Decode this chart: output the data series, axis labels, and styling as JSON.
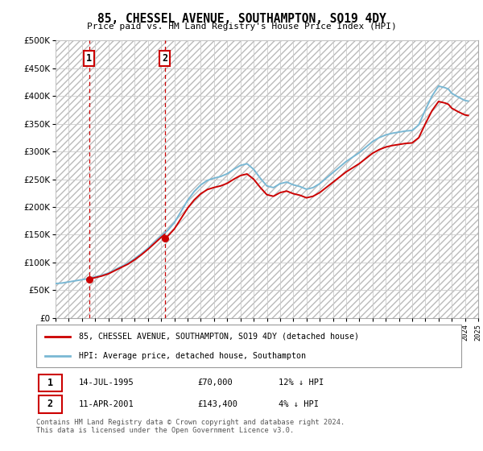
{
  "title": "85, CHESSEL AVENUE, SOUTHAMPTON, SO19 4DY",
  "subtitle": "Price paid vs. HM Land Registry's House Price Index (HPI)",
  "ylim": [
    0,
    500000
  ],
  "yticks": [
    0,
    50000,
    100000,
    150000,
    200000,
    250000,
    300000,
    350000,
    400000,
    450000,
    500000
  ],
  "ytick_labels": [
    "£0",
    "£50K",
    "£100K",
    "£150K",
    "£200K",
    "£250K",
    "£300K",
    "£350K",
    "£400K",
    "£450K",
    "£500K"
  ],
  "sale1_date": 1995.54,
  "sale1_price": 70000,
  "sale1_label": "1",
  "sale2_date": 2001.28,
  "sale2_price": 143400,
  "sale2_label": "2",
  "hpi_color": "#7ab8d4",
  "sale_color": "#cc0000",
  "dashed_color": "#cc0000",
  "legend_line1": "85, CHESSEL AVENUE, SOUTHAMPTON, SO19 4DY (detached house)",
  "legend_line2": "HPI: Average price, detached house, Southampton",
  "table_row1": [
    "1",
    "14-JUL-1995",
    "£70,000",
    "12% ↓ HPI"
  ],
  "table_row2": [
    "2",
    "11-APR-2001",
    "£143,400",
    "4% ↓ HPI"
  ],
  "footnote": "Contains HM Land Registry data © Crown copyright and database right 2024.\nThis data is licensed under the Open Government Licence v3.0.",
  "hpi_years": [
    1993.0,
    1993.25,
    1993.5,
    1993.75,
    1994.0,
    1994.25,
    1994.5,
    1994.75,
    1995.0,
    1995.25,
    1995.5,
    1995.75,
    1996.0,
    1996.25,
    1996.5,
    1996.75,
    1997.0,
    1997.25,
    1997.5,
    1997.75,
    1998.0,
    1998.25,
    1998.5,
    1998.75,
    1999.0,
    1999.25,
    1999.5,
    1999.75,
    2000.0,
    2000.25,
    2000.5,
    2000.75,
    2001.0,
    2001.25,
    2001.5,
    2001.75,
    2002.0,
    2002.25,
    2002.5,
    2002.75,
    2003.0,
    2003.25,
    2003.5,
    2003.75,
    2004.0,
    2004.25,
    2004.5,
    2004.75,
    2005.0,
    2005.25,
    2005.5,
    2005.75,
    2006.0,
    2006.25,
    2006.5,
    2006.75,
    2007.0,
    2007.25,
    2007.5,
    2007.75,
    2008.0,
    2008.25,
    2008.5,
    2008.75,
    2009.0,
    2009.25,
    2009.5,
    2009.75,
    2010.0,
    2010.25,
    2010.5,
    2010.75,
    2011.0,
    2011.25,
    2011.5,
    2011.75,
    2012.0,
    2012.25,
    2012.5,
    2012.75,
    2013.0,
    2013.25,
    2013.5,
    2013.75,
    2014.0,
    2014.25,
    2014.5,
    2014.75,
    2015.0,
    2015.25,
    2015.5,
    2015.75,
    2016.0,
    2016.25,
    2016.5,
    2016.75,
    2017.0,
    2017.25,
    2017.5,
    2017.75,
    2018.0,
    2018.25,
    2018.5,
    2018.75,
    2019.0,
    2019.25,
    2019.5,
    2019.75,
    2020.0,
    2020.25,
    2020.5,
    2020.75,
    2021.0,
    2021.25,
    2021.5,
    2021.75,
    2022.0,
    2022.25,
    2022.5,
    2022.75,
    2023.0,
    2023.25,
    2023.5,
    2023.75,
    2024.0,
    2024.25
  ],
  "hpi_values": [
    62000,
    62500,
    63000,
    64000,
    65000,
    66000,
    67000,
    68000,
    69000,
    70000,
    71000,
    72500,
    74000,
    75500,
    77000,
    79000,
    81000,
    84000,
    87000,
    90000,
    93000,
    96000,
    99000,
    103000,
    107000,
    111500,
    116000,
    121000,
    126000,
    131500,
    137000,
    142500,
    148000,
    153000,
    158000,
    165000,
    172000,
    182000,
    192000,
    202000,
    212000,
    220000,
    228000,
    234000,
    240000,
    244000,
    248000,
    250000,
    252000,
    253500,
    255000,
    257500,
    260000,
    264000,
    268000,
    271500,
    275000,
    276500,
    278000,
    273000,
    268000,
    260000,
    252000,
    245000,
    238000,
    236500,
    235000,
    238500,
    242000,
    243500,
    245000,
    242500,
    240000,
    238500,
    237000,
    234500,
    232000,
    233500,
    235000,
    238500,
    242000,
    247000,
    252000,
    257000,
    262000,
    267000,
    272000,
    277000,
    282000,
    286000,
    290000,
    294000,
    298000,
    303000,
    308000,
    313000,
    318000,
    321500,
    325000,
    327500,
    330000,
    331500,
    333000,
    334000,
    335000,
    336000,
    337000,
    337500,
    338000,
    343000,
    348000,
    361500,
    375000,
    387500,
    400000,
    409000,
    418000,
    416500,
    415000,
    412500,
    405000,
    401500,
    398000,
    395000,
    392000,
    391000
  ]
}
